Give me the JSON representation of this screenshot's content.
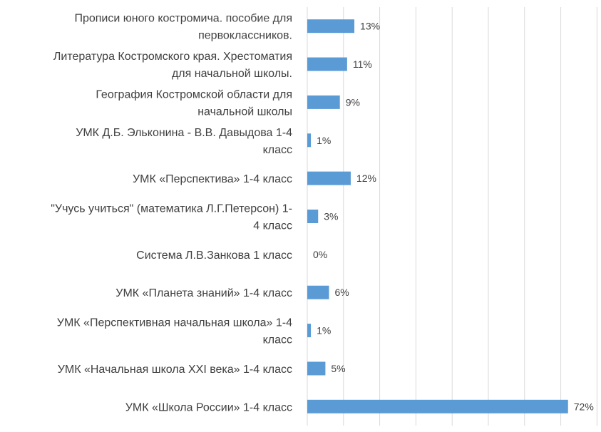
{
  "chart_data": {
    "type": "bar",
    "orientation": "horizontal",
    "categories": [
      [
        "Прописи юного костромича. пособие для",
        "первоклассников."
      ],
      [
        "Литература Костромского края. Хрестоматия",
        "для начальной школы."
      ],
      [
        "География Костромской области для",
        "начальной школы"
      ],
      [
        "УМК Д.Б. Эльконина - В.В. Давыдова 1-4",
        "класс"
      ],
      [
        "УМК «Перспектива» 1-4 класс"
      ],
      [
        "\"Учусь учиться\" (математика Л.Г.Петерсон) 1-",
        "4 класс"
      ],
      [
        "Система Л.В.Занкова 1 класс"
      ],
      [
        "УМК «Планета знаний» 1-4 класс"
      ],
      [
        "УМК «Перспективная начальная школа» 1-4",
        "класс"
      ],
      [
        "УМК «Начальная школа XXI века» 1-4 класс"
      ],
      [
        "УМК «Школа России» 1-4 класс"
      ]
    ],
    "values": [
      13,
      11,
      9,
      1,
      12,
      3,
      0,
      6,
      1,
      5,
      72
    ],
    "value_labels": [
      "13%",
      "11%",
      "9%",
      "1%",
      "12%",
      "3%",
      "0%",
      "6%",
      "1%",
      "5%",
      "72%"
    ],
    "xlim": [
      0,
      80
    ],
    "grid": true,
    "bar_color": "#5b9bd5",
    "grid_color": "#d9d9d9"
  }
}
